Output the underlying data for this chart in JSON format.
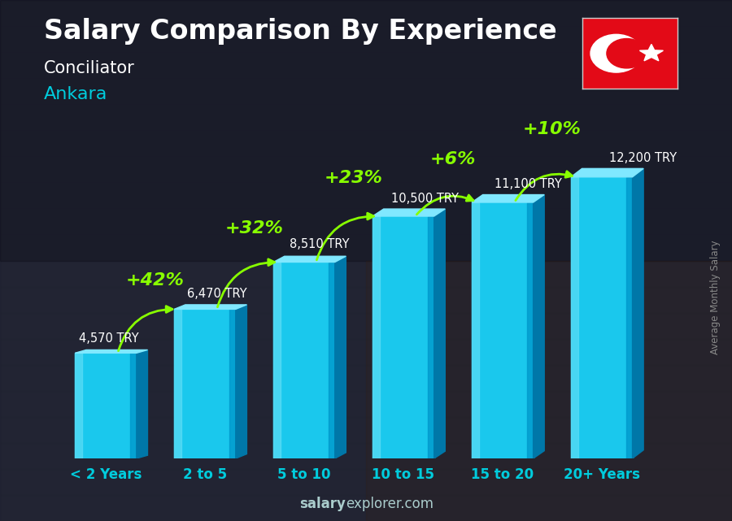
{
  "title": "Salary Comparison By Experience",
  "subtitle": "Conciliator",
  "city": "Ankara",
  "ylabel": "Average Monthly Salary",
  "footer_bold": "salary",
  "footer_normal": "explorer.com",
  "categories": [
    "< 2 Years",
    "2 to 5",
    "5 to 10",
    "10 to 15",
    "15 to 20",
    "20+ Years"
  ],
  "values": [
    4570,
    6470,
    8510,
    10500,
    11100,
    12200
  ],
  "value_labels": [
    "4,570 TRY",
    "6,470 TRY",
    "8,510 TRY",
    "10,500 TRY",
    "11,100 TRY",
    "12,200 TRY"
  ],
  "pct_changes": [
    "+42%",
    "+32%",
    "+23%",
    "+6%",
    "+10%"
  ],
  "bar_face_color": "#1ac8ed",
  "bar_light_color": "#5ddcf5",
  "bar_dark_color": "#0099cc",
  "bar_side_color": "#0077a8",
  "bar_top_color": "#80e8ff",
  "background_color": "#1a1a2e",
  "bg_overlay": "#000000",
  "title_color": "#ffffff",
  "subtitle_color": "#ffffff",
  "city_color": "#00ccdd",
  "value_label_color": "#ffffff",
  "pct_color": "#88ff00",
  "arrow_color": "#88ff00",
  "footer_color": "#aacccc",
  "ylabel_color": "#888888",
  "xticklabel_color": "#00ccdd",
  "bar_width": 0.62,
  "ylim_max": 14000,
  "flag_bg": "#e30a17",
  "title_fontsize": 24,
  "subtitle_fontsize": 15,
  "city_fontsize": 16,
  "value_fontsize": 10.5,
  "pct_fontsize": 16,
  "footer_fontsize": 12,
  "xticklabel_fontsize": 12
}
